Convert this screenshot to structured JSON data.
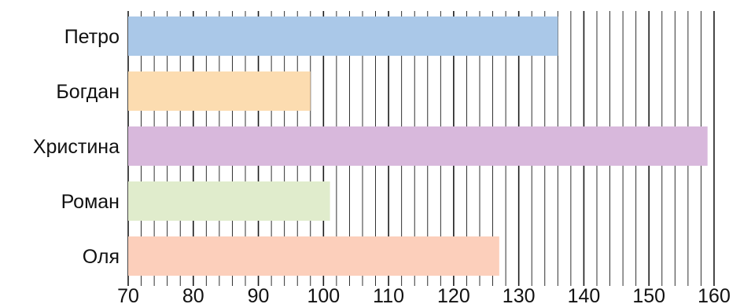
{
  "chart_data": {
    "type": "bar",
    "orientation": "horizontal",
    "title": "",
    "xlabel": "",
    "ylabel": "",
    "categories": [
      "Петро",
      "Богдан",
      "Христина",
      "Роман",
      "Оля"
    ],
    "values": [
      136,
      98,
      159,
      101,
      127
    ],
    "colors": [
      "#aac8e8",
      "#fcdcb0",
      "#d8b8dc",
      "#e0eccc",
      "#fccfbb"
    ],
    "xlim": [
      70,
      160
    ],
    "x_ticks": [
      "70",
      "80",
      "90",
      "100",
      "110",
      "120",
      "130",
      "140",
      "150",
      "160"
    ],
    "grid": true,
    "grid_minor_step": 2,
    "legend": "none"
  }
}
